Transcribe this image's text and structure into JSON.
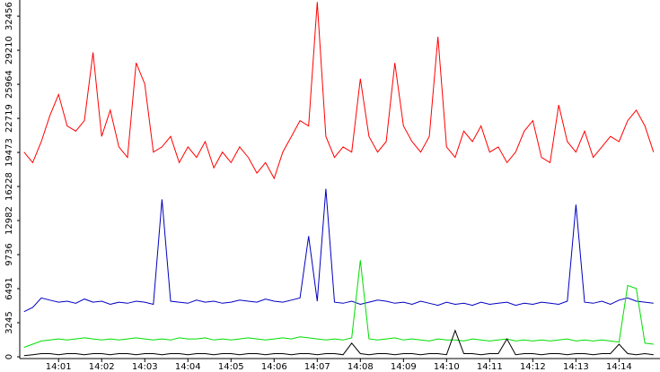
{
  "chart_data": {
    "type": "line",
    "x": [
      0.2,
      0.4,
      0.6,
      0.8,
      1.0,
      1.2,
      1.4,
      1.6,
      1.8,
      2.0,
      2.2,
      2.4,
      2.6,
      2.8,
      3.0,
      3.2,
      3.4,
      3.6,
      3.8,
      4.0,
      4.2,
      4.4,
      4.6,
      4.8,
      5.0,
      5.2,
      5.4,
      5.6,
      5.8,
      6.0,
      6.2,
      6.4,
      6.6,
      6.8,
      7.0,
      7.2,
      7.4,
      7.6,
      7.8,
      8.0,
      8.2,
      8.4,
      8.6,
      8.8,
      9.0,
      9.2,
      9.4,
      9.6,
      9.8,
      10.0,
      10.2,
      10.4,
      10.6,
      10.8,
      11.0,
      11.2,
      11.4,
      11.6,
      11.8,
      12.0,
      12.2,
      12.4,
      12.6,
      12.8,
      13.0,
      13.2,
      13.4,
      13.6,
      13.8,
      14.0,
      14.2,
      14.4,
      14.6,
      14.8
    ],
    "series": [
      {
        "color": "#ff0000",
        "values": [
          19500,
          18500,
          20500,
          23000,
          25000,
          22000,
          21500,
          22500,
          29000,
          21000,
          23500,
          20000,
          19000,
          28000,
          26000,
          19500,
          20000,
          21000,
          18500,
          20000,
          19000,
          20500,
          18000,
          19500,
          18500,
          20000,
          19000,
          17500,
          18500,
          17000,
          19500,
          21000,
          22500,
          22000,
          33800,
          21000,
          19000,
          20000,
          19500,
          26500,
          21000,
          19500,
          20500,
          28000,
          22000,
          20500,
          19500,
          21000,
          30500,
          20000,
          19000,
          21500,
          20500,
          22000,
          19500,
          20000,
          18500,
          19500,
          21500,
          22500,
          19000,
          18500,
          24000,
          20500,
          19500,
          21500,
          19000,
          20000,
          21000,
          20500,
          22500,
          23500,
          22000,
          19500
        ]
      },
      {
        "color": "#0000c0",
        "values": [
          4300,
          4700,
          5600,
          5400,
          5200,
          5300,
          5100,
          5500,
          5200,
          5300,
          5000,
          5200,
          5100,
          5300,
          5200,
          5000,
          15000,
          5300,
          5200,
          5100,
          5400,
          5200,
          5300,
          5100,
          5200,
          5400,
          5300,
          5200,
          5500,
          5300,
          5200,
          5400,
          5600,
          11500,
          5300,
          16000,
          5200,
          5100,
          5300,
          5000,
          5200,
          5400,
          5300,
          5100,
          5200,
          5000,
          5300,
          5100,
          4900,
          5200,
          5000,
          5100,
          4900,
          5200,
          5000,
          5100,
          5200,
          4900,
          5100,
          5000,
          5200,
          5100,
          5000,
          5300,
          14500,
          5200,
          5100,
          5300,
          5000,
          5400,
          5600,
          5300,
          5200,
          5100
        ]
      },
      {
        "color": "#00dd00",
        "values": [
          900,
          1200,
          1500,
          1600,
          1700,
          1600,
          1700,
          1800,
          1700,
          1600,
          1700,
          1600,
          1700,
          1800,
          1700,
          1600,
          1700,
          1600,
          1800,
          1700,
          1700,
          1800,
          1600,
          1700,
          1600,
          1700,
          1800,
          1700,
          1600,
          1700,
          1800,
          1700,
          1900,
          1800,
          1700,
          1600,
          1700,
          1600,
          1800,
          9200,
          1700,
          1600,
          1700,
          1800,
          1600,
          1700,
          1600,
          1500,
          1700,
          1600,
          1600,
          1500,
          1700,
          1600,
          1500,
          1600,
          1700,
          1500,
          1600,
          1500,
          1600,
          1500,
          1600,
          1700,
          1500,
          1600,
          1500,
          1600,
          1500,
          1400,
          6800,
          6500,
          1300,
          1200
        ]
      },
      {
        "color": "#000000",
        "values": [
          100,
          200,
          300,
          300,
          200,
          300,
          300,
          200,
          300,
          300,
          200,
          300,
          300,
          200,
          300,
          300,
          200,
          300,
          300,
          200,
          300,
          300,
          200,
          300,
          300,
          200,
          300,
          300,
          200,
          300,
          300,
          200,
          300,
          300,
          200,
          300,
          300,
          200,
          1300,
          300,
          200,
          300,
          300,
          200,
          300,
          300,
          200,
          300,
          300,
          200,
          2500,
          300,
          300,
          200,
          300,
          300,
          1700,
          200,
          300,
          300,
          200,
          300,
          300,
          200,
          300,
          300,
          200,
          300,
          300,
          1200,
          300,
          200,
          300,
          200
        ]
      }
    ],
    "xlim": [
      0.1,
      14.95
    ],
    "xticks": [
      {
        "value": 1,
        "label": "14:01"
      },
      {
        "value": 2,
        "label": "14:02"
      },
      {
        "value": 3,
        "label": "14:03"
      },
      {
        "value": 4,
        "label": "14:04"
      },
      {
        "value": 5,
        "label": "14:05"
      },
      {
        "value": 6,
        "label": "14:06"
      },
      {
        "value": 7,
        "label": "14:07"
      },
      {
        "value": 8,
        "label": "14:08"
      },
      {
        "value": 9,
        "label": "14:09"
      },
      {
        "value": 10,
        "label": "14:10"
      },
      {
        "value": 11,
        "label": "14:11"
      },
      {
        "value": 12,
        "label": "14:12"
      },
      {
        "value": 13,
        "label": "14:13"
      },
      {
        "value": 14,
        "label": "14:14"
      }
    ],
    "ylim": [
      0,
      34000
    ],
    "yticks": [
      0,
      3245,
      6491,
      9736,
      12982,
      16228,
      19473,
      22719,
      25964,
      29210,
      32456
    ]
  }
}
